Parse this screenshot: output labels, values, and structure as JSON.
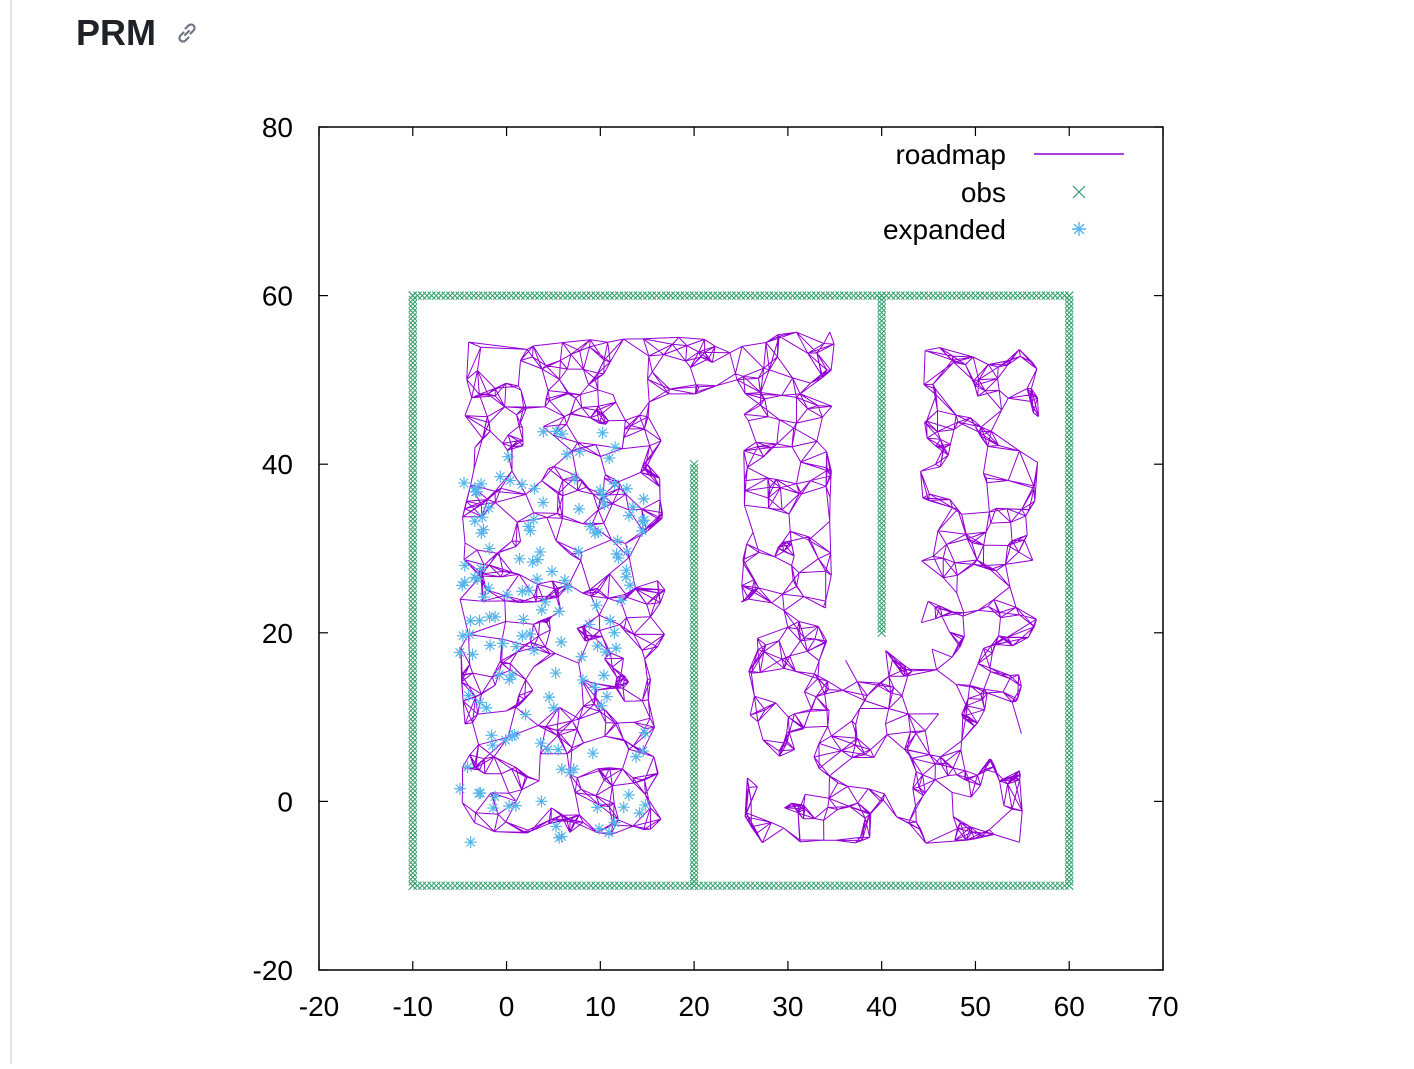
{
  "heading": {
    "title": "PRM",
    "link_icon": "link-icon"
  },
  "chart_data": {
    "type": "scatter",
    "title": "",
    "xlabel": "",
    "ylabel": "",
    "xlim": [
      -20,
      70
    ],
    "ylim": [
      -20,
      80
    ],
    "xticks": [
      "-20",
      "-10",
      "0",
      "10",
      "20",
      "30",
      "40",
      "50",
      "60",
      "70"
    ],
    "yticks": [
      "-20",
      "0",
      "20",
      "40",
      "60",
      "80"
    ],
    "grid": false,
    "legend_position": "top-right",
    "legend": [
      "roadmap",
      "obs",
      "expanded"
    ],
    "colors": {
      "roadmap": "#9400d3",
      "obs": "#2e9e6b",
      "expanded": "#56b4e9"
    },
    "obstacles": [
      {
        "type": "wall",
        "from": [
          -10,
          -10
        ],
        "to": [
          -10,
          60
        ]
      },
      {
        "type": "wall",
        "from": [
          60,
          -10
        ],
        "to": [
          60,
          60
        ]
      },
      {
        "type": "wall",
        "from": [
          -10,
          -10
        ],
        "to": [
          60,
          -10
        ]
      },
      {
        "type": "wall",
        "from": [
          -10,
          60
        ],
        "to": [
          60,
          60
        ]
      },
      {
        "type": "wall",
        "from": [
          20,
          -10
        ],
        "to": [
          20,
          40
        ]
      },
      {
        "type": "wall",
        "from": [
          40,
          20
        ],
        "to": [
          40,
          60
        ]
      }
    ],
    "roadmap_regions": [
      {
        "x_range": [
          -5,
          17
        ],
        "y_range": [
          -4,
          55
        ]
      },
      {
        "x_range": [
          17,
          35
        ],
        "y_range": [
          48,
          56
        ]
      },
      {
        "x_range": [
          25,
          35
        ],
        "y_range": [
          -5,
          50
        ]
      },
      {
        "x_range": [
          35,
          55
        ],
        "y_range": [
          -5,
          18
        ]
      },
      {
        "x_range": [
          44,
          57
        ],
        "y_range": [
          18,
          54
        ]
      }
    ],
    "expanded_region": {
      "x_range": [
        -5,
        15
      ],
      "y_range": [
        -5,
        44
      ]
    }
  }
}
